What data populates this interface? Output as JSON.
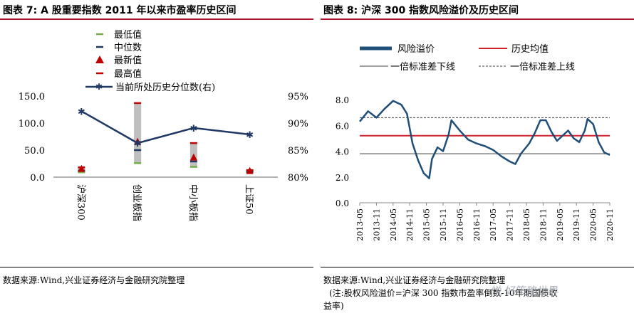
{
  "left": {
    "header": "图表 7:  A 股重要指数 2011 年以来市盈率历史区间",
    "source": "数据来源:Wind,兴业证券经济与金融研究院整理",
    "chart_data": {
      "type": "bar",
      "categories": [
        "沪深300",
        "创业板指",
        "中小板指",
        "上证50"
      ],
      "y_left": {
        "lim": [
          0,
          150
        ],
        "ticks": [
          "150.0",
          "100.0",
          "50.0",
          "0.0"
        ]
      },
      "y_right": {
        "lim": [
          80,
          95
        ],
        "ticks": [
          "95%",
          "90%",
          "85%",
          "80%"
        ]
      },
      "legend": [
        "最低值",
        "中位数",
        "最新值",
        "最高值",
        "当前所处历史分位数(右)"
      ],
      "series": [
        {
          "name": "最低值",
          "values": [
            9,
            26,
            19,
            9
          ]
        },
        {
          "name": "中位数",
          "values": [
            12,
            50,
            29,
            10
          ]
        },
        {
          "name": "最新值",
          "values": [
            15,
            65,
            36,
            11
          ]
        },
        {
          "name": "最高值",
          "values": [
            18,
            137,
            63,
            13
          ]
        },
        {
          "name": "当前所处历史分位数(右)",
          "axis": "right",
          "values": [
            92.2,
            86.3,
            89.1,
            87.9
          ]
        }
      ],
      "colors": {
        "min": "#70ad47",
        "median": "#1f3864",
        "latest": "#c00000",
        "max": "#c00000",
        "pct": "#1f3864",
        "range": "#bfbfbf"
      }
    }
  },
  "right": {
    "header": "图表 8:  沪深 300 指数风险溢价及历史区间",
    "source_line1": "数据来源:Wind,兴业证券经济与金融研究院整理",
    "source_line2": "(注:股权风险溢价=沪深 300 指数市盈率倒数-10年期国债收",
    "source_line3": "益率)",
    "watermark": "悦 好策略世界",
    "chart_data": {
      "type": "line",
      "legend": [
        "风险溢价",
        "历史均值",
        "一倍标准差下线",
        "一倍标准差上线"
      ],
      "y": {
        "lim": [
          0,
          8
        ],
        "ticks": [
          "8.0",
          "6.0",
          "4.0",
          "2.0",
          "0.0"
        ]
      },
      "x_ticks": [
        "2013-05",
        "2013-11",
        "2014-05",
        "2014-11",
        "2015-05",
        "2015-11",
        "2016-05",
        "2016-11",
        "2017-05",
        "2017-11",
        "2018-05",
        "2018-11",
        "2019-05",
        "2019-11",
        "2020-05",
        "2020-11"
      ],
      "series": [
        {
          "name": "风险溢价",
          "x": [
            "2013-05",
            "2013-08",
            "2013-11",
            "2014-02",
            "2014-05",
            "2014-08",
            "2014-10",
            "2014-12",
            "2015-02",
            "2015-04",
            "2015-06",
            "2015-07",
            "2015-09",
            "2015-11",
            "2016-01",
            "2016-02",
            "2016-05",
            "2016-08",
            "2016-11",
            "2017-02",
            "2017-05",
            "2017-08",
            "2017-11",
            "2018-01",
            "2018-03",
            "2018-06",
            "2018-08",
            "2018-10",
            "2018-12",
            "2019-02",
            "2019-04",
            "2019-06",
            "2019-08",
            "2019-10",
            "2019-12",
            "2020-02",
            "2020-03",
            "2020-05",
            "2020-07",
            "2020-09",
            "2020-11"
          ],
          "values": [
            6.3,
            7.1,
            6.6,
            7.3,
            7.9,
            7.6,
            6.9,
            4.6,
            3.3,
            2.3,
            1.9,
            3.4,
            4.3,
            4.0,
            5.3,
            6.4,
            5.6,
            4.9,
            4.6,
            4.4,
            4.1,
            3.6,
            3.2,
            3.0,
            3.8,
            4.6,
            5.4,
            6.4,
            6.4,
            5.5,
            4.8,
            5.2,
            5.6,
            5.0,
            4.7,
            5.6,
            6.5,
            6.1,
            4.7,
            3.9,
            3.7
          ]
        },
        {
          "name": "历史均值",
          "values": [
            5.2
          ]
        },
        {
          "name": "一倍标准差下线",
          "values": [
            3.8
          ]
        },
        {
          "name": "一倍标准差上线",
          "values": [
            6.6
          ]
        }
      ],
      "colors": {
        "premium": "#1f4e79",
        "mean": "#d0202a",
        "lower": "#808080",
        "upper": "#404040"
      }
    }
  }
}
